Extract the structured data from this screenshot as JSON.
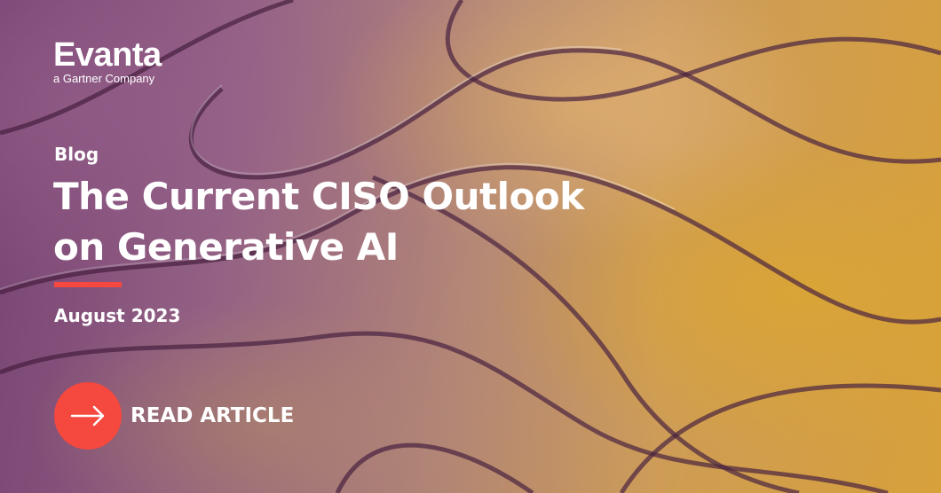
{
  "brand": {
    "name": "Evanta",
    "tagline": "a Gartner Company"
  },
  "kicker": "Blog",
  "title_lines": [
    "The Current CISO Outlook",
    "on Generative AI"
  ],
  "date": "August 2023",
  "cta": {
    "label": "READ ARTICLE",
    "icon": "arrow-right-icon"
  },
  "colors": {
    "accent": "#f5483f",
    "text": "#ffffff"
  }
}
